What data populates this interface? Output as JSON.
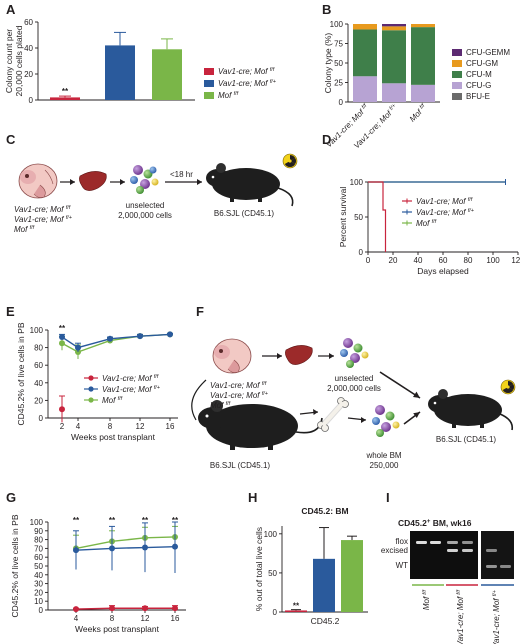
{
  "panels": [
    "A",
    "B",
    "C",
    "D",
    "E",
    "F",
    "G",
    "H",
    "I"
  ],
  "colors": {
    "red": "#c8243d",
    "blue": "#2a5a9c",
    "green": "#7ab648",
    "cfu_gemm": "#5c2a72",
    "cfu_gm": "#e89a1e",
    "cfu_m": "#3f7f4a",
    "cfu_g": "#b7a3d3",
    "bfu_e": "#6b6b6b"
  },
  "legend_genotypes": [
    {
      "pre": "Vav1-cre; Mof ",
      "sup": "f/f"
    },
    {
      "pre": "Vav1-cre; Mof ",
      "sup": "f/+"
    },
    {
      "pre": "Mof ",
      "sup": "f/f"
    }
  ],
  "chart_data": [
    {
      "panel": "A",
      "type": "bar",
      "categories": [
        "Vav1-cre; Mof f/f",
        "Vav1-cre; Mof f/+",
        "Mof f/f"
      ],
      "values": [
        2,
        42,
        39
      ],
      "errors": [
        1,
        10,
        8
      ],
      "ylabel_lines": [
        "Colony count per",
        "20,000 cells plated"
      ],
      "yticks": [
        0,
        20,
        40,
        60
      ],
      "ylim": [
        0,
        60
      ],
      "annotations": [
        "**"
      ]
    },
    {
      "panel": "B",
      "type": "bar",
      "stacked": true,
      "categories": [
        "Vav1-cre; Mof f/f",
        "Vav1-cre; Mof f/+",
        "Mof f/f"
      ],
      "ylabel": "Colony type (%)",
      "yticks": [
        0,
        25,
        50,
        75,
        100
      ],
      "ylim": [
        0,
        100
      ],
      "series": [
        {
          "name": "BFU-E",
          "values": [
            0,
            0,
            0
          ]
        },
        {
          "name": "CFU-G",
          "values": [
            33,
            24,
            22
          ]
        },
        {
          "name": "CFU-M",
          "values": [
            60,
            68,
            74
          ]
        },
        {
          "name": "CFU-GM",
          "values": [
            7,
            5,
            4
          ]
        },
        {
          "name": "CFU-GEMM",
          "values": [
            0,
            3,
            0
          ]
        }
      ],
      "legend_order": [
        "CFU-GEMM",
        "CFU-GM",
        "CFU-M",
        "CFU-G",
        "BFU-E"
      ]
    },
    {
      "panel": "D",
      "type": "line",
      "ylabel": "Percent survival",
      "xlabel": "Days elapsed",
      "xticks": [
        0,
        20,
        40,
        60,
        80,
        100,
        120
      ],
      "yticks": [
        0,
        50,
        100
      ],
      "xlim": [
        0,
        120
      ],
      "ylim": [
        0,
        100
      ],
      "series": [
        {
          "name": "Vav1-cre; Mof f/f",
          "x": [
            0,
            12,
            12,
            14,
            14
          ],
          "y": [
            100,
            100,
            60,
            60,
            0
          ]
        },
        {
          "name": "Vav1-cre; Mof f/+",
          "x": [
            0,
            110
          ],
          "y": [
            100,
            100
          ]
        },
        {
          "name": "Mof f/f",
          "x": [
            0,
            110
          ],
          "y": [
            100,
            100
          ]
        }
      ]
    },
    {
      "panel": "E",
      "type": "line",
      "ylabel": "CD45.2% of live cells in PB",
      "xlabel": "Weeks post transplant",
      "xticks": [
        2,
        4,
        8,
        12,
        16
      ],
      "yticks": [
        0,
        20,
        40,
        60,
        80,
        100
      ],
      "ylim": [
        0,
        100
      ],
      "series": [
        {
          "name": "Vav1-cre; Mof f/f",
          "x": [
            2
          ],
          "y": [
            10
          ],
          "err": [
            15
          ]
        },
        {
          "name": "Vav1-cre; Mof f/+",
          "x": [
            2,
            4,
            8,
            12,
            16
          ],
          "y": [
            92,
            80,
            90,
            93,
            95
          ],
          "err": [
            3,
            5,
            2,
            2,
            1
          ]
        },
        {
          "name": "Mof f/f",
          "x": [
            2,
            4,
            8,
            12,
            16
          ],
          "y": [
            85,
            75,
            88,
            93,
            95
          ],
          "err": [
            8,
            8,
            3,
            2,
            1
          ]
        }
      ],
      "annotations": [
        "**"
      ]
    },
    {
      "panel": "G",
      "type": "line",
      "ylabel": "CD45.2% of live cells in PB",
      "xlabel": "Weeks post transplant",
      "xticks": [
        4,
        8,
        12,
        16
      ],
      "yticks": [
        0,
        10,
        20,
        30,
        40,
        50,
        60,
        70,
        80,
        90,
        100
      ],
      "ylim": [
        0,
        100
      ],
      "series": [
        {
          "name": "Vav1-cre; Mof f/f",
          "x": [
            4,
            8,
            12,
            16
          ],
          "y": [
            1,
            2,
            2,
            2
          ],
          "err": [
            1,
            3,
            2,
            3
          ]
        },
        {
          "name": "Vav1-cre; Mof f/+",
          "x": [
            4,
            8,
            12,
            16
          ],
          "y": [
            68,
            70,
            71,
            72
          ],
          "err": [
            22,
            25,
            28,
            30
          ]
        },
        {
          "name": "Mof f/f",
          "x": [
            4,
            8,
            12,
            16
          ],
          "y": [
            70,
            78,
            82,
            83
          ],
          "err": [
            15,
            12,
            12,
            12
          ]
        }
      ],
      "annotations": [
        "**",
        "**",
        "**",
        "**"
      ]
    },
    {
      "panel": "H",
      "type": "bar",
      "title": "CD45.2: BM",
      "ylabel": "% out of total live cells",
      "xlabel": "CD45.2",
      "categories": [
        "Vav1-cre; Mof f/f",
        "Vav1-cre; Mof f/+",
        "Mof f/f"
      ],
      "values": [
        2,
        68,
        92
      ],
      "errors": [
        1,
        40,
        5
      ],
      "yticks": [
        0,
        50,
        100
      ],
      "ylim": [
        0,
        110
      ],
      "annotations": [
        "**"
      ]
    }
  ],
  "schematic_c": {
    "arrow_label": "<18 hr",
    "cells_lines": [
      "unselected",
      "2,000,000 cells"
    ],
    "recipient": "B6.SJL (CD45.1)"
  },
  "schematic_f": {
    "cells_lines": [
      "unselected",
      "2,000,000 cells"
    ],
    "donor": "B6.SJL (CD45.1)",
    "bm_lines": [
      "whole BM",
      "250,000"
    ],
    "recipient": "B6.SJL (CD45.1)"
  },
  "gel_i": {
    "title": "CD45.2",
    "title_sup": "+",
    "title_rest": " BM, wk16",
    "band_labels": [
      "flox",
      "excised",
      "WT"
    ],
    "lanes": [
      {
        "pre": "Mof ",
        "sup": "f/f"
      },
      {
        "pre": "Vav1-cre; Mof ",
        "sup": "f/f"
      },
      {
        "pre": "Vav1-cre; Mof ",
        "sup": "f/+"
      }
    ]
  }
}
